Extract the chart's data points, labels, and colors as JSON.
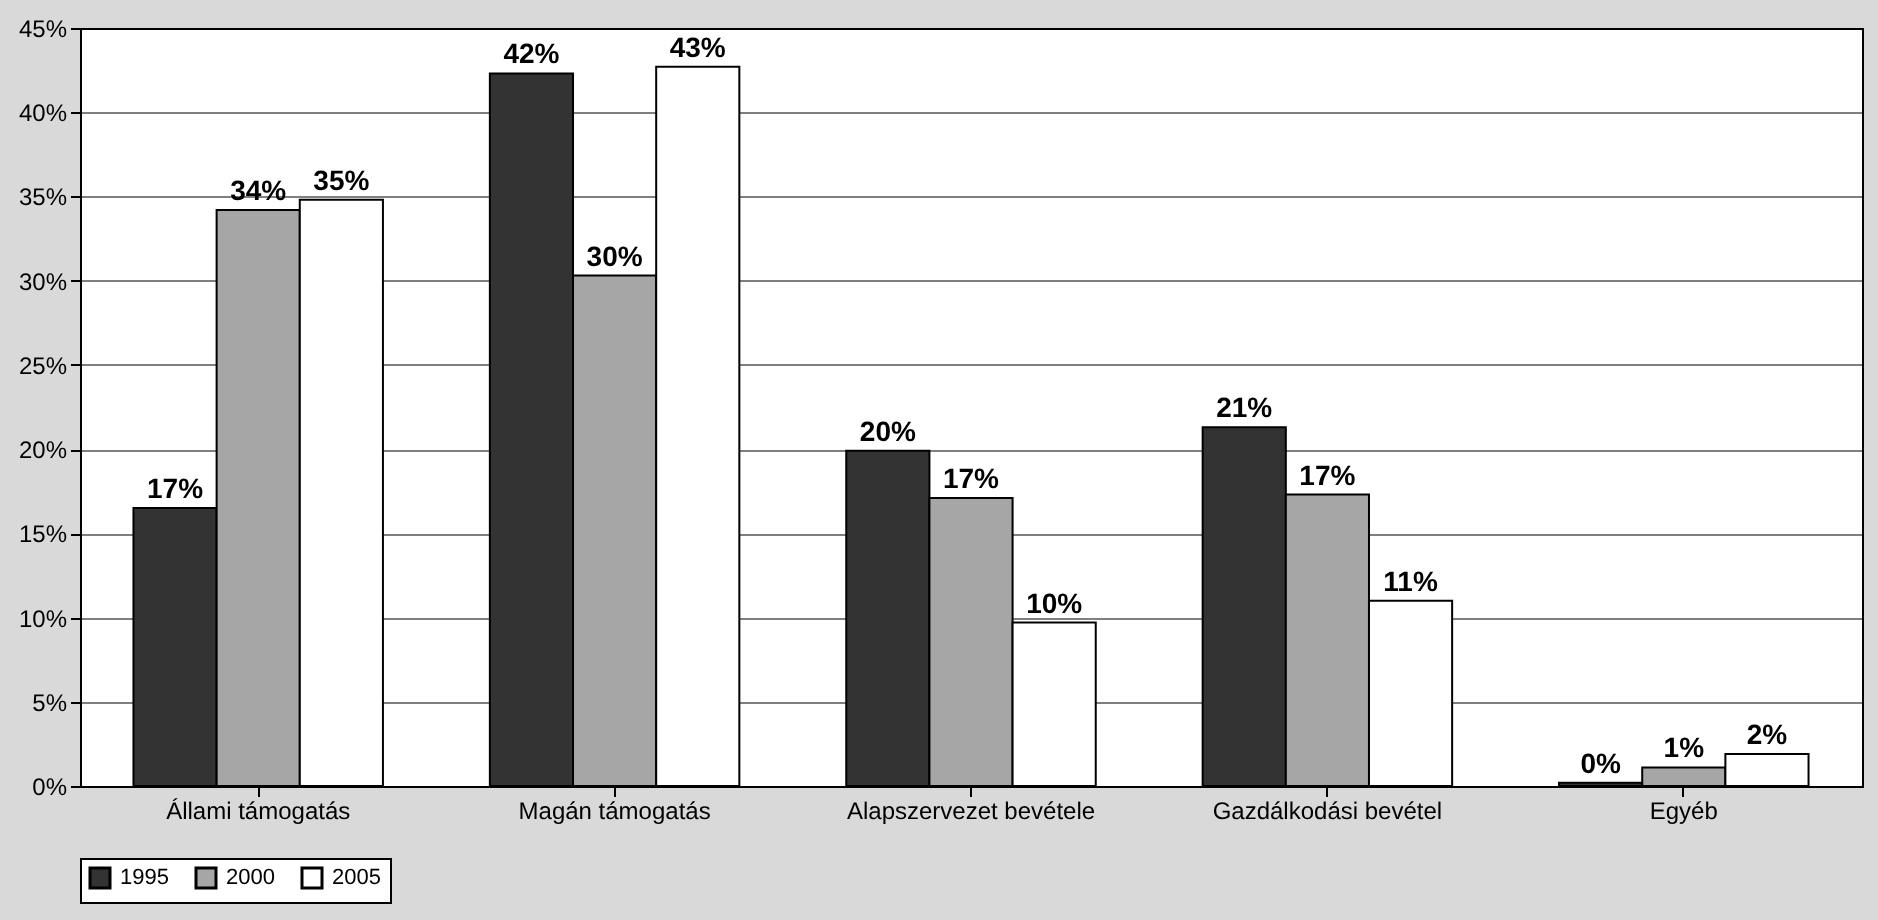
{
  "chart_data": {
    "type": "bar",
    "categories": [
      "Állami támogatás",
      "Magán támogatás",
      "Alapszervezet bevétele",
      "Gazdálkodási bevétel",
      "Egyéb"
    ],
    "series": [
      {
        "name": "1995",
        "color": "#333333",
        "values": [
          16.5,
          42.3,
          19.9,
          21.3,
          0.2
        ],
        "value_labels": [
          "17%",
          "42%",
          "20%",
          "21%",
          "0%"
        ]
      },
      {
        "name": "2000",
        "color": "#a6a6a6",
        "values": [
          34.2,
          30.3,
          17.1,
          17.3,
          1.1
        ],
        "value_labels": [
          "34%",
          "30%",
          "17%",
          "17%",
          "1%"
        ]
      },
      {
        "name": "2005",
        "color": "#ffffff",
        "values": [
          34.8,
          42.7,
          9.7,
          11.0,
          1.9
        ],
        "value_labels": [
          "35%",
          "43%",
          "10%",
          "11%",
          "2%"
        ]
      }
    ],
    "ylim": [
      0,
      45
    ],
    "yticks": [
      {
        "value": 0,
        "label": "0%"
      },
      {
        "value": 5,
        "label": "5%"
      },
      {
        "value": 10,
        "label": "10%"
      },
      {
        "value": 15,
        "label": "15%"
      },
      {
        "value": 20,
        "label": "20%"
      },
      {
        "value": 25,
        "label": "25%"
      },
      {
        "value": 30,
        "label": "30%"
      },
      {
        "value": 35,
        "label": "35%"
      },
      {
        "value": 40,
        "label": "40%"
      },
      {
        "value": 45,
        "label": "45%"
      }
    ],
    "grid": "y",
    "legend": "bottom"
  }
}
